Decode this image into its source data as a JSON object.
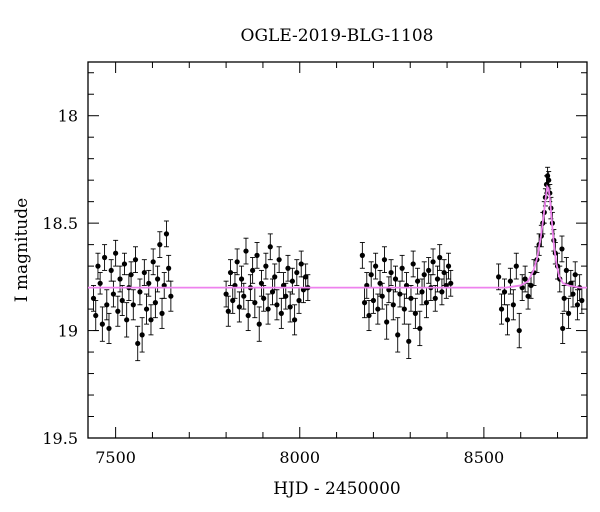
{
  "chart_data": {
    "type": "scatter",
    "title": "OGLE-2019-BLG-1108",
    "xlabel": "HJD - 2450000",
    "ylabel": "I magnitude",
    "xlim": [
      7425,
      8780
    ],
    "ylim": [
      19.5,
      17.75
    ],
    "y_inverted": true,
    "xticks": [
      7500,
      8000,
      8500
    ],
    "yticks": [
      18,
      18.5,
      19,
      19.5
    ],
    "ytick_labels": [
      "18",
      "18.5",
      "19",
      "19.5"
    ],
    "grid": false,
    "legend": "none",
    "baseline_magnitude": 18.8,
    "model_color": "#ee82ee",
    "point_color": "#000000",
    "model_curve": {
      "x": [
        7425,
        8560,
        8600,
        8620,
        8635,
        8645,
        8655,
        8662,
        8668,
        8672,
        8676,
        8680,
        8685,
        8690,
        8697,
        8705,
        8715,
        8730,
        8760,
        8780
      ],
      "y": [
        18.8,
        18.8,
        18.79,
        18.77,
        18.72,
        18.66,
        18.56,
        18.47,
        18.38,
        18.33,
        18.34,
        18.4,
        18.5,
        18.6,
        18.69,
        18.75,
        18.78,
        18.79,
        18.8,
        18.8
      ]
    },
    "points": [
      {
        "x": 7440,
        "y": 18.85,
        "e": 0.06
      },
      {
        "x": 7446,
        "y": 18.93,
        "e": 0.07
      },
      {
        "x": 7452,
        "y": 18.7,
        "e": 0.06
      },
      {
        "x": 7458,
        "y": 18.78,
        "e": 0.05
      },
      {
        "x": 7464,
        "y": 18.97,
        "e": 0.08
      },
      {
        "x": 7470,
        "y": 18.66,
        "e": 0.06
      },
      {
        "x": 7476,
        "y": 18.88,
        "e": 0.07
      },
      {
        "x": 7482,
        "y": 18.99,
        "e": 0.07
      },
      {
        "x": 7488,
        "y": 18.72,
        "e": 0.05
      },
      {
        "x": 7494,
        "y": 18.83,
        "e": 0.06
      },
      {
        "x": 7500,
        "y": 18.64,
        "e": 0.06
      },
      {
        "x": 7506,
        "y": 18.91,
        "e": 0.07
      },
      {
        "x": 7512,
        "y": 18.76,
        "e": 0.06
      },
      {
        "x": 7518,
        "y": 18.86,
        "e": 0.07
      },
      {
        "x": 7524,
        "y": 18.69,
        "e": 0.05
      },
      {
        "x": 7530,
        "y": 18.95,
        "e": 0.08
      },
      {
        "x": 7536,
        "y": 18.8,
        "e": 0.06
      },
      {
        "x": 7542,
        "y": 18.74,
        "e": 0.06
      },
      {
        "x": 7548,
        "y": 18.88,
        "e": 0.07
      },
      {
        "x": 7554,
        "y": 18.67,
        "e": 0.06
      },
      {
        "x": 7560,
        "y": 19.06,
        "e": 0.08
      },
      {
        "x": 7566,
        "y": 18.82,
        "e": 0.06
      },
      {
        "x": 7572,
        "y": 19.02,
        "e": 0.08
      },
      {
        "x": 7578,
        "y": 18.73,
        "e": 0.06
      },
      {
        "x": 7584,
        "y": 18.9,
        "e": 0.07
      },
      {
        "x": 7590,
        "y": 18.78,
        "e": 0.06
      },
      {
        "x": 7596,
        "y": 18.95,
        "e": 0.07
      },
      {
        "x": 7602,
        "y": 18.68,
        "e": 0.06
      },
      {
        "x": 7608,
        "y": 18.87,
        "e": 0.07
      },
      {
        "x": 7614,
        "y": 18.76,
        "e": 0.06
      },
      {
        "x": 7620,
        "y": 18.6,
        "e": 0.06
      },
      {
        "x": 7626,
        "y": 18.92,
        "e": 0.07
      },
      {
        "x": 7632,
        "y": 18.79,
        "e": 0.06
      },
      {
        "x": 7638,
        "y": 18.55,
        "e": 0.06
      },
      {
        "x": 7644,
        "y": 18.71,
        "e": 0.06
      },
      {
        "x": 7650,
        "y": 18.84,
        "e": 0.07
      },
      {
        "x": 7800,
        "y": 18.83,
        "e": 0.06
      },
      {
        "x": 7806,
        "y": 18.91,
        "e": 0.07
      },
      {
        "x": 7812,
        "y": 18.73,
        "e": 0.06
      },
      {
        "x": 7818,
        "y": 18.86,
        "e": 0.06
      },
      {
        "x": 7824,
        "y": 18.79,
        "e": 0.06
      },
      {
        "x": 7830,
        "y": 18.68,
        "e": 0.06
      },
      {
        "x": 7836,
        "y": 18.89,
        "e": 0.07
      },
      {
        "x": 7842,
        "y": 18.76,
        "e": 0.06
      },
      {
        "x": 7848,
        "y": 18.84,
        "e": 0.06
      },
      {
        "x": 7854,
        "y": 18.63,
        "e": 0.06
      },
      {
        "x": 7860,
        "y": 18.93,
        "e": 0.07
      },
      {
        "x": 7866,
        "y": 18.8,
        "e": 0.06
      },
      {
        "x": 7872,
        "y": 18.72,
        "e": 0.06
      },
      {
        "x": 7878,
        "y": 18.87,
        "e": 0.07
      },
      {
        "x": 7884,
        "y": 18.65,
        "e": 0.06
      },
      {
        "x": 7890,
        "y": 18.97,
        "e": 0.08
      },
      {
        "x": 7896,
        "y": 18.78,
        "e": 0.06
      },
      {
        "x": 7902,
        "y": 18.85,
        "e": 0.06
      },
      {
        "x": 7908,
        "y": 18.7,
        "e": 0.06
      },
      {
        "x": 7914,
        "y": 18.9,
        "e": 0.07
      },
      {
        "x": 7920,
        "y": 18.61,
        "e": 0.06
      },
      {
        "x": 7926,
        "y": 18.82,
        "e": 0.06
      },
      {
        "x": 7932,
        "y": 18.75,
        "e": 0.06
      },
      {
        "x": 7938,
        "y": 18.88,
        "e": 0.07
      },
      {
        "x": 7944,
        "y": 18.67,
        "e": 0.06
      },
      {
        "x": 7950,
        "y": 18.92,
        "e": 0.07
      },
      {
        "x": 7956,
        "y": 18.79,
        "e": 0.06
      },
      {
        "x": 7962,
        "y": 18.84,
        "e": 0.06
      },
      {
        "x": 7968,
        "y": 18.71,
        "e": 0.06
      },
      {
        "x": 7974,
        "y": 18.89,
        "e": 0.07
      },
      {
        "x": 7980,
        "y": 18.77,
        "e": 0.06
      },
      {
        "x": 7986,
        "y": 18.95,
        "e": 0.07
      },
      {
        "x": 7992,
        "y": 18.73,
        "e": 0.06
      },
      {
        "x": 7998,
        "y": 18.86,
        "e": 0.06
      },
      {
        "x": 8004,
        "y": 18.69,
        "e": 0.06
      },
      {
        "x": 8010,
        "y": 18.81,
        "e": 0.06
      },
      {
        "x": 8016,
        "y": 18.75,
        "e": 0.06
      },
      {
        "x": 8022,
        "y": 18.8,
        "e": 0.06
      },
      {
        "x": 8170,
        "y": 18.65,
        "e": 0.06
      },
      {
        "x": 8176,
        "y": 18.87,
        "e": 0.07
      },
      {
        "x": 8182,
        "y": 18.79,
        "e": 0.06
      },
      {
        "x": 8188,
        "y": 18.93,
        "e": 0.07
      },
      {
        "x": 8194,
        "y": 18.74,
        "e": 0.06
      },
      {
        "x": 8200,
        "y": 18.86,
        "e": 0.06
      },
      {
        "x": 8206,
        "y": 18.7,
        "e": 0.06
      },
      {
        "x": 8212,
        "y": 18.9,
        "e": 0.07
      },
      {
        "x": 8218,
        "y": 18.78,
        "e": 0.06
      },
      {
        "x": 8224,
        "y": 18.84,
        "e": 0.06
      },
      {
        "x": 8230,
        "y": 18.67,
        "e": 0.06
      },
      {
        "x": 8236,
        "y": 18.96,
        "e": 0.08
      },
      {
        "x": 8242,
        "y": 18.81,
        "e": 0.06
      },
      {
        "x": 8248,
        "y": 18.73,
        "e": 0.06
      },
      {
        "x": 8254,
        "y": 18.88,
        "e": 0.07
      },
      {
        "x": 8260,
        "y": 18.76,
        "e": 0.06
      },
      {
        "x": 8266,
        "y": 19.02,
        "e": 0.08
      },
      {
        "x": 8272,
        "y": 18.83,
        "e": 0.06
      },
      {
        "x": 8278,
        "y": 18.71,
        "e": 0.06
      },
      {
        "x": 8284,
        "y": 18.9,
        "e": 0.07
      },
      {
        "x": 8290,
        "y": 18.79,
        "e": 0.06
      },
      {
        "x": 8296,
        "y": 19.05,
        "e": 0.08
      },
      {
        "x": 8302,
        "y": 18.85,
        "e": 0.06
      },
      {
        "x": 8308,
        "y": 18.69,
        "e": 0.06
      },
      {
        "x": 8314,
        "y": 18.92,
        "e": 0.07
      },
      {
        "x": 8320,
        "y": 18.77,
        "e": 0.06
      },
      {
        "x": 8326,
        "y": 18.99,
        "e": 0.08
      },
      {
        "x": 8332,
        "y": 18.82,
        "e": 0.06
      },
      {
        "x": 8338,
        "y": 18.74,
        "e": 0.06
      },
      {
        "x": 8344,
        "y": 18.87,
        "e": 0.07
      },
      {
        "x": 8350,
        "y": 18.72,
        "e": 0.06
      },
      {
        "x": 8356,
        "y": 18.8,
        "e": 0.06
      },
      {
        "x": 8362,
        "y": 18.68,
        "e": 0.06
      },
      {
        "x": 8368,
        "y": 18.85,
        "e": 0.06
      },
      {
        "x": 8374,
        "y": 18.76,
        "e": 0.06
      },
      {
        "x": 8380,
        "y": 18.66,
        "e": 0.06
      },
      {
        "x": 8386,
        "y": 18.82,
        "e": 0.06
      },
      {
        "x": 8392,
        "y": 18.73,
        "e": 0.06
      },
      {
        "x": 8398,
        "y": 18.79,
        "e": 0.06
      },
      {
        "x": 8404,
        "y": 18.7,
        "e": 0.06
      },
      {
        "x": 8410,
        "y": 18.78,
        "e": 0.06
      },
      {
        "x": 8540,
        "y": 18.75,
        "e": 0.06
      },
      {
        "x": 8548,
        "y": 18.9,
        "e": 0.07
      },
      {
        "x": 8556,
        "y": 18.82,
        "e": 0.06
      },
      {
        "x": 8564,
        "y": 18.95,
        "e": 0.07
      },
      {
        "x": 8572,
        "y": 18.77,
        "e": 0.06
      },
      {
        "x": 8580,
        "y": 18.88,
        "e": 0.07
      },
      {
        "x": 8588,
        "y": 18.7,
        "e": 0.06
      },
      {
        "x": 8596,
        "y": 19.0,
        "e": 0.08
      },
      {
        "x": 8604,
        "y": 18.8,
        "e": 0.06
      },
      {
        "x": 8612,
        "y": 18.76,
        "e": 0.06
      },
      {
        "x": 8620,
        "y": 18.84,
        "e": 0.06
      },
      {
        "x": 8628,
        "y": 18.79,
        "e": 0.06
      },
      {
        "x": 8636,
        "y": 18.73,
        "e": 0.06
      },
      {
        "x": 8644,
        "y": 18.67,
        "e": 0.06
      },
      {
        "x": 8650,
        "y": 18.6,
        "e": 0.05
      },
      {
        "x": 8656,
        "y": 18.56,
        "e": 0.05
      },
      {
        "x": 8660,
        "y": 18.5,
        "e": 0.05
      },
      {
        "x": 8664,
        "y": 18.45,
        "e": 0.05
      },
      {
        "x": 8667,
        "y": 18.38,
        "e": 0.04
      },
      {
        "x": 8670,
        "y": 18.32,
        "e": 0.04
      },
      {
        "x": 8673,
        "y": 18.28,
        "e": 0.04
      },
      {
        "x": 8676,
        "y": 18.3,
        "e": 0.04
      },
      {
        "x": 8679,
        "y": 18.36,
        "e": 0.04
      },
      {
        "x": 8682,
        "y": 18.43,
        "e": 0.05
      },
      {
        "x": 8686,
        "y": 18.5,
        "e": 0.05
      },
      {
        "x": 8690,
        "y": 18.58,
        "e": 0.05
      },
      {
        "x": 8694,
        "y": 18.64,
        "e": 0.05
      },
      {
        "x": 8700,
        "y": 18.7,
        "e": 0.06
      },
      {
        "x": 8706,
        "y": 18.76,
        "e": 0.06
      },
      {
        "x": 8712,
        "y": 18.62,
        "e": 0.06
      },
      {
        "x": 8718,
        "y": 18.85,
        "e": 0.06
      },
      {
        "x": 8724,
        "y": 18.72,
        "e": 0.06
      },
      {
        "x": 8730,
        "y": 18.92,
        "e": 0.07
      },
      {
        "x": 8736,
        "y": 18.78,
        "e": 0.06
      },
      {
        "x": 8742,
        "y": 18.83,
        "e": 0.06
      },
      {
        "x": 8748,
        "y": 18.74,
        "e": 0.06
      },
      {
        "x": 8754,
        "y": 18.88,
        "e": 0.07
      },
      {
        "x": 8760,
        "y": 18.8,
        "e": 0.06
      },
      {
        "x": 8766,
        "y": 18.86,
        "e": 0.06
      },
      {
        "x": 8714,
        "y": 18.99,
        "e": 0.07
      }
    ]
  }
}
